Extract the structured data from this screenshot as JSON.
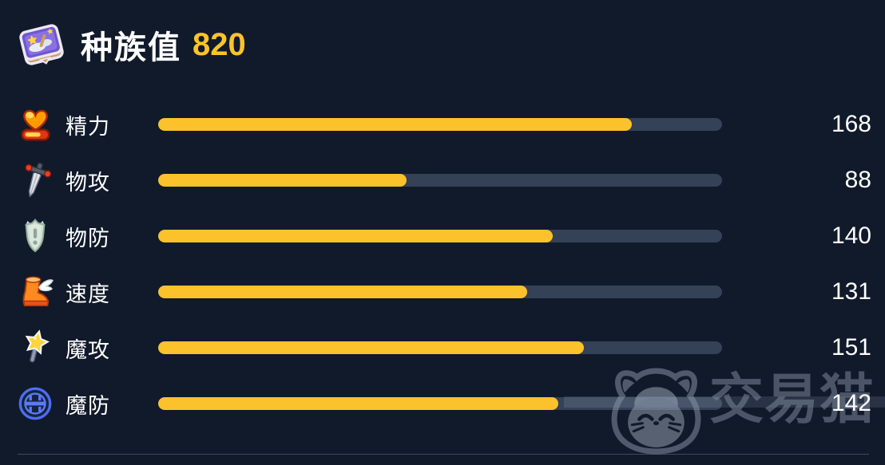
{
  "colors": {
    "background": "#111a2b",
    "bar_fill": "#fcc22b",
    "bar_track": "#344156",
    "accent_gold": "#fcc32b",
    "text": "#ffffff"
  },
  "header": {
    "icon": "spellbook-icon",
    "title": "种族值",
    "total": "820"
  },
  "stats": {
    "max": 200,
    "rows": [
      {
        "icon": "energy-icon",
        "label": "精力",
        "value": 168
      },
      {
        "icon": "physical-attack-icon",
        "label": "物攻",
        "value": 88
      },
      {
        "icon": "physical-defense-icon",
        "label": "物防",
        "value": 140
      },
      {
        "icon": "speed-icon",
        "label": "速度",
        "value": 131
      },
      {
        "icon": "magic-attack-icon",
        "label": "魔攻",
        "value": 151
      },
      {
        "icon": "magic-defense-icon",
        "label": "魔防",
        "value": 142
      }
    ]
  },
  "watermark": {
    "brand": "交易猫",
    "logo": "cat-logo"
  },
  "chart_data": {
    "type": "bar",
    "orientation": "horizontal",
    "title": "种族值 820",
    "categories": [
      "精力",
      "物攻",
      "物防",
      "速度",
      "魔攻",
      "魔防"
    ],
    "values": [
      168,
      88,
      140,
      131,
      151,
      142
    ],
    "total": 820,
    "xlim": [
      0,
      200
    ],
    "grid": false,
    "legend": false,
    "bar_color": "#fcc22b",
    "track_color": "#344156"
  }
}
